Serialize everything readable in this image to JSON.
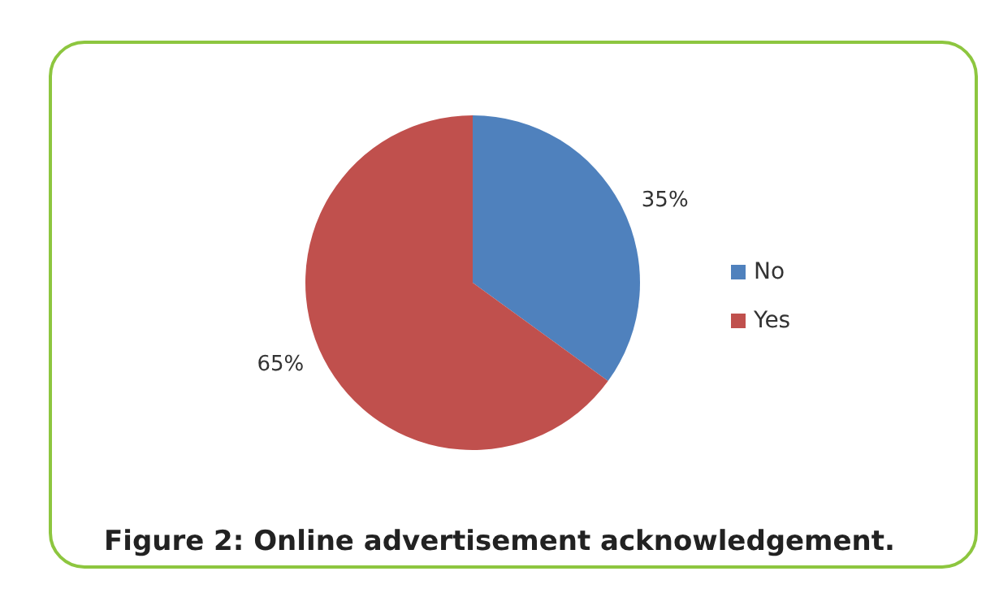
{
  "chart_data": {
    "type": "pie",
    "title": "Figure 2: Online advertisement acknowledgement.",
    "categories": [
      "No",
      "Yes"
    ],
    "values": [
      35,
      65
    ],
    "colors": [
      "#4f81bd",
      "#c0504d"
    ],
    "value_labels": [
      "35%",
      "65%"
    ],
    "legend": "right"
  }
}
